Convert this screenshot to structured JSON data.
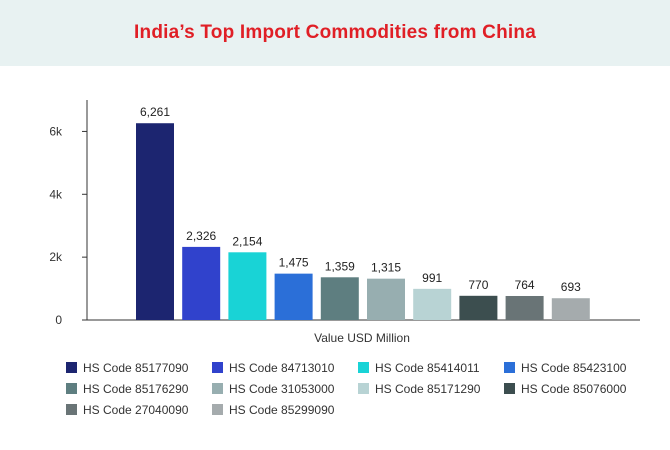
{
  "title": "India’s Top Import Commodities from China",
  "chart_data": {
    "type": "bar",
    "xlabel": "Value USD Million",
    "ylabel": "",
    "ylim": [
      0,
      7000
    ],
    "yticks": [
      0,
      2000,
      4000,
      6000
    ],
    "ytick_labels": [
      "0",
      "2k",
      "4k",
      "6k"
    ],
    "grid": false,
    "legend_position": "bottom",
    "categories": [
      "HS Code 85177090",
      "HS Code 84713010",
      "HS Code 85414011",
      "HS Code 85423100",
      "HS Code 85176290",
      "HS Code 31053000",
      "HS Code 85171290",
      "HS Code 85076000",
      "HS Code 27040090",
      "HS Code 85299090"
    ],
    "values": [
      6261,
      2326,
      2154,
      1475,
      1359,
      1315,
      991,
      770,
      764,
      693
    ],
    "value_labels": [
      "6,261",
      "2,326",
      "2,154",
      "1,475",
      "1,359",
      "1,315",
      "991",
      "770",
      "764",
      "693"
    ],
    "colors": [
      "#1c2570",
      "#3042cc",
      "#19d3d6",
      "#2b6fd8",
      "#5e7e80",
      "#97aeb0",
      "#b8d3d4",
      "#3c4e4f",
      "#697476",
      "#a5abad"
    ]
  }
}
